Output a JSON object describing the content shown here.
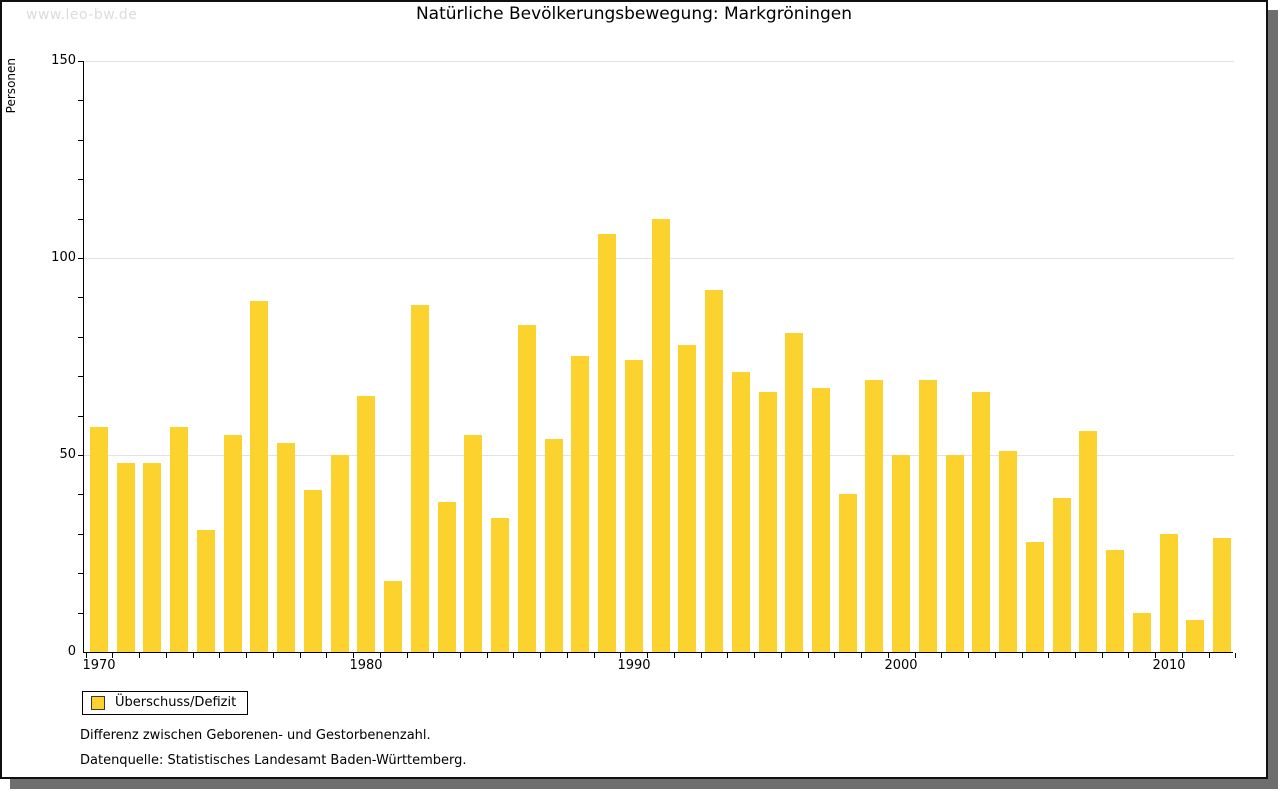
{
  "watermark": "www.leo-bw.de",
  "footer": {
    "line1": "Differenz zwischen Geborenen- und Gestorbenenzahl.",
    "line2": "Datenquelle: Statistisches Landesamt Baden-Württemberg."
  },
  "colors": {
    "bar": "#fcd22e",
    "grid": "#e2e2e2",
    "axis": "#000000",
    "watermark": "#dcdcdc",
    "shadow": "#6e6e6e"
  },
  "chart_data": {
    "type": "bar",
    "title": "Natürliche Bevölkerungsbewegung: Markgröningen",
    "xlabel": "",
    "ylabel": "Personen",
    "ylim": [
      0,
      150
    ],
    "y_major_ticks": [
      0,
      50,
      100,
      150
    ],
    "y_minor_step": 10,
    "grid": "horizontal-at-50-100-150",
    "legend": {
      "label": "Überschuss/Defizit",
      "position": "bottom-left"
    },
    "categories": [
      1970,
      1971,
      1972,
      1973,
      1974,
      1975,
      1976,
      1977,
      1978,
      1979,
      1980,
      1981,
      1982,
      1983,
      1984,
      1985,
      1986,
      1987,
      1988,
      1989,
      1990,
      1991,
      1992,
      1993,
      1994,
      1995,
      1996,
      1997,
      1998,
      1999,
      2000,
      2001,
      2002,
      2003,
      2004,
      2005,
      2006,
      2007,
      2008,
      2009,
      2010,
      2011,
      2012
    ],
    "values": [
      57,
      48,
      48,
      57,
      31,
      55,
      89,
      53,
      41,
      50,
      65,
      18,
      88,
      38,
      55,
      34,
      83,
      54,
      75,
      106,
      74,
      110,
      78,
      92,
      71,
      66,
      81,
      67,
      40,
      69,
      50,
      69,
      50,
      66,
      51,
      28,
      39,
      56,
      26,
      10,
      30,
      8,
      29
    ],
    "series_name": "Überschuss/Defizit"
  }
}
